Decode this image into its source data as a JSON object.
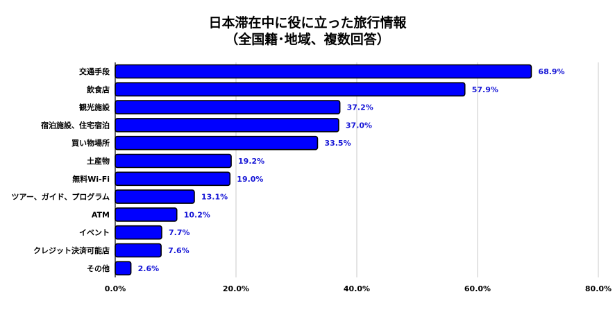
{
  "chart_data": {
    "type": "bar",
    "orientation": "horizontal",
    "title": "日本滞在中に役に立った旅行情報",
    "subtitle": "（全国籍･地域、複数回答）",
    "categories": [
      "交通手段",
      "飲食店",
      "観光施設",
      "宿泊施設、住宅宿泊",
      "買い物場所",
      "土産物",
      "無料Wi-Fi",
      "ツアー、ガイド、プログラム",
      "ATM",
      "イベント",
      "クレジット決済可能店",
      "その他"
    ],
    "values": [
      68.9,
      57.9,
      37.2,
      37.0,
      33.5,
      19.2,
      19.0,
      13.1,
      10.2,
      7.7,
      7.6,
      2.6
    ],
    "value_labels": [
      "68.9%",
      "57.9%",
      "37.2%",
      "37.0%",
      "33.5%",
      "19.2%",
      "19.0%",
      "13.1%",
      "10.2%",
      "7.7%",
      "7.6%",
      "2.6%"
    ],
    "xlim": [
      0,
      80
    ],
    "x_ticks": [
      0,
      20,
      40,
      60,
      80
    ],
    "x_tick_labels": [
      "0.0%",
      "20.0%",
      "40.0%",
      "60.0%",
      "80.0%"
    ],
    "xlabel": "",
    "ylabel": "",
    "grid": "vertical",
    "legend": "none",
    "colors": {
      "bar_fill": "#0000ff",
      "bar_stroke": "#000000",
      "data_label": "#1515d6",
      "grid": "#c8c8c8",
      "axis": "#000000"
    }
  }
}
